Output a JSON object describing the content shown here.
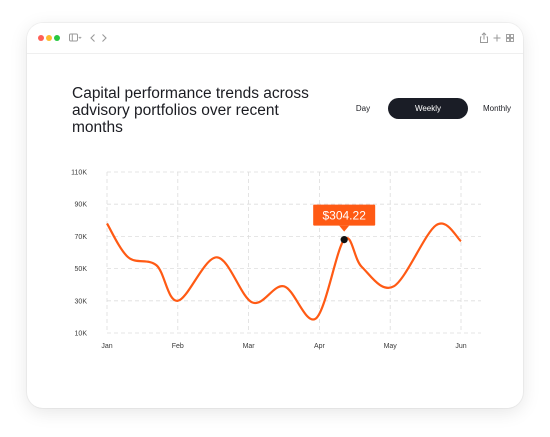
{
  "title": "Capital performance trends across advisory portfolios over recent months",
  "tabs": [
    {
      "label": "Day",
      "active": false
    },
    {
      "label": "Weekly",
      "active": true
    },
    {
      "label": "Monthly",
      "active": false
    }
  ],
  "colors": {
    "line": "#ff5a14",
    "accent_tab": "#1a1d26",
    "grid": "#dddddd"
  },
  "tooltip": {
    "label": "$304.22"
  },
  "chart_data": {
    "type": "line",
    "categories": [
      "Jan",
      "Feb",
      "Mar",
      "Apr",
      "May",
      "Jun"
    ],
    "yticks": [
      "10K",
      "30K",
      "50K",
      "70K",
      "90K",
      "110K"
    ],
    "ylim": [
      10000,
      110000
    ],
    "grid": true,
    "series": [
      {
        "x": [
          0.0,
          0.3,
          0.7,
          1.0,
          1.55,
          2.05,
          2.5,
          2.95,
          3.35,
          3.6,
          4.05,
          4.65,
          5.0
        ],
        "values": [
          78000,
          57000,
          52000,
          30000,
          57000,
          29000,
          39000,
          19000,
          68000,
          51000,
          39000,
          77000,
          67000
        ]
      }
    ],
    "highlight": {
      "x": 3.35,
      "value": 68000,
      "label": "$304.22"
    }
  }
}
